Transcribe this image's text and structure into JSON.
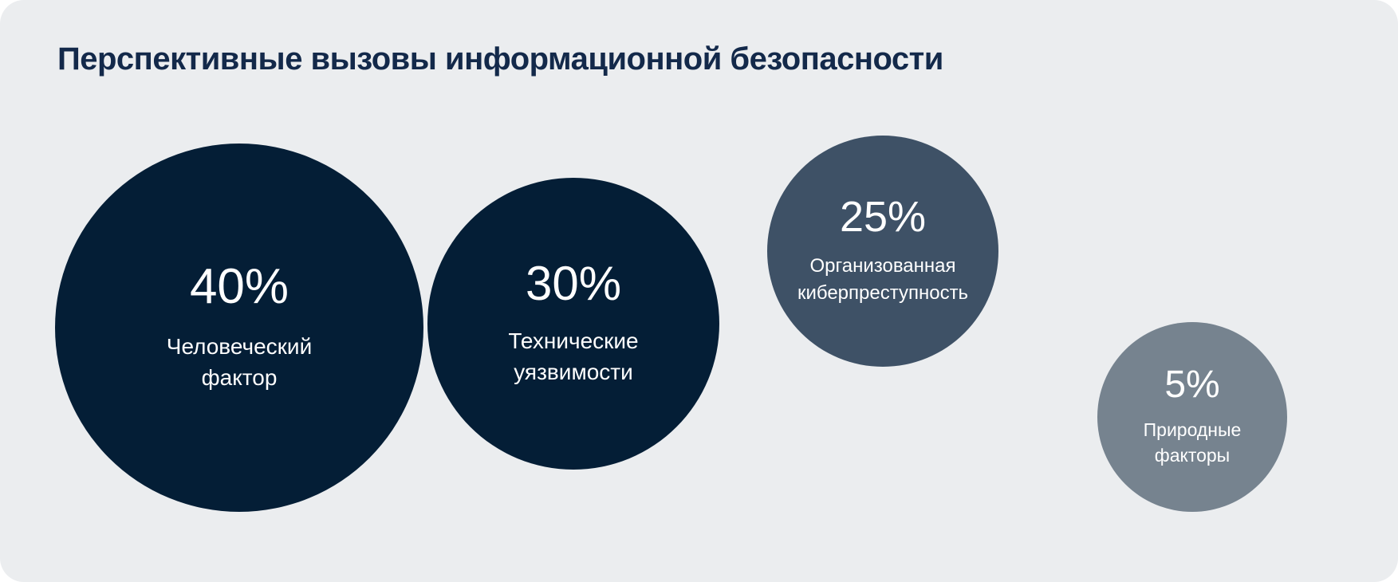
{
  "title": "Перспективные вызовы информационной безопасности",
  "bubbles": [
    {
      "value_label": "40%",
      "label": "Человеческий фактор"
    },
    {
      "value_label": "30%",
      "label": "Технические уязвимости"
    },
    {
      "value_label": "25%",
      "label": "Организованная киберпреступность"
    },
    {
      "value_label": "5%",
      "label": "Природные факторы"
    }
  ],
  "colors": {
    "card_background": "#ebedef",
    "page_background": "#ffffff",
    "title_text": "#13294a",
    "bubble_dark_navy": "#041e36",
    "bubble_slate": "#3e5166",
    "bubble_gray": "#76838f",
    "bubble_text": "#ffffff"
  },
  "chart_data": {
    "type": "bubble",
    "title": "Перспективные вызовы информационной безопасности",
    "categories": [
      "Человеческий фактор",
      "Технические уязвимости",
      "Организованная киберпреступность",
      "Природные факторы"
    ],
    "values": [
      40,
      30,
      25,
      5
    ],
    "unit": "%",
    "series": [
      {
        "name": "Человеческий фактор",
        "value": 40,
        "color": "#041e36",
        "relative_diameter": 1.0
      },
      {
        "name": "Технические уязвимости",
        "value": 30,
        "color": "#041e36",
        "relative_diameter": 0.79
      },
      {
        "name": "Организованная киберпреступность",
        "value": 25,
        "color": "#3e5166",
        "relative_diameter": 0.63
      },
      {
        "name": "Природные факторы",
        "value": 5,
        "color": "#76838f",
        "relative_diameter": 0.52
      }
    ],
    "layout_hints": {
      "style": "proportional circles on light-gray rounded card, arranged left-to-right descending by value",
      "first_two_circles_touch": true,
      "value_label_position": "inside circle above category label",
      "legend": "none",
      "axes": "none",
      "grid": false
    }
  }
}
